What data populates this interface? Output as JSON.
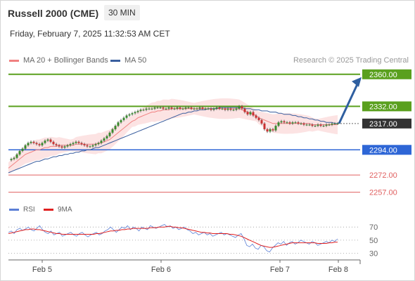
{
  "header": {
    "title": "Russell 2000 (CME)",
    "timeframe": "30 MIN",
    "datetime": "Friday, February 7, 2025 11:32:53 AM CET",
    "source": "Research © 2025 Trading Central"
  },
  "legend": {
    "ma20_label": "MA 20 + Bollinger Bands",
    "ma20_color": "#f08080",
    "ma50_label": "MA 50",
    "ma50_color": "#3a5f9f"
  },
  "rsi_legend": {
    "rsi_label": "RSI",
    "rsi_color": "#5b7fd6",
    "ma_label": "9MA",
    "ma_color": "#e02020"
  },
  "chart_data": {
    "type": "candlestick",
    "x_ticks": [
      "Feb 5",
      "Feb 6",
      "Feb 7",
      "Feb 8"
    ],
    "price_levels": [
      {
        "label": "2360.00",
        "value": 2360.0,
        "kind": "resistance",
        "color": "#5aa01e"
      },
      {
        "label": "2332.00",
        "value": 2332.0,
        "kind": "resistance",
        "color": "#5aa01e"
      },
      {
        "label": "2317.00",
        "value": 2317.0,
        "kind": "current",
        "color": "#333333"
      },
      {
        "label": "2294.00",
        "value": 2294.0,
        "kind": "pivot",
        "color": "#2e66d6"
      },
      {
        "label": "2272.00",
        "value": 2272.0,
        "kind": "support",
        "color": "#e06060"
      },
      {
        "label": "2257.00",
        "value": 2257.0,
        "kind": "support",
        "color": "#e06060"
      }
    ],
    "price_ylim": [
      2250,
      2366
    ],
    "rsi_ticks": [
      70,
      50,
      30
    ],
    "rsi_ylim": [
      22,
      82
    ],
    "forecast": {
      "from": 2317,
      "to": 2360,
      "direction": "up"
    },
    "price_series": [
      2285,
      2286,
      2287,
      2290,
      2293,
      2295,
      2298,
      2300,
      2301,
      2300,
      2299,
      2298,
      2300,
      2302,
      2303,
      2301,
      2299,
      2298,
      2297,
      2296,
      2297,
      2298,
      2299,
      2300,
      2301,
      2300,
      2299,
      2298,
      2297,
      2297,
      2298,
      2299,
      2300,
      2302,
      2304,
      2306,
      2309,
      2312,
      2315,
      2318,
      2320,
      2322,
      2324,
      2325,
      2326,
      2327,
      2328,
      2329,
      2329,
      2330,
      2330,
      2330,
      2331,
      2331,
      2331,
      2330,
      2330,
      2331,
      2330,
      2330,
      2331,
      2330,
      2330,
      2331,
      2331,
      2330,
      2330,
      2330,
      2331,
      2330,
      2330,
      2330,
      2329,
      2330,
      2331,
      2330,
      2330,
      2329,
      2330,
      2329,
      2329,
      2330,
      2332,
      2330,
      2327,
      2325,
      2327,
      2324,
      2322,
      2320,
      2317,
      2312,
      2310,
      2312,
      2311,
      2315,
      2318,
      2319,
      2318,
      2318,
      2317,
      2318,
      2318,
      2317,
      2317,
      2316,
      2316,
      2316,
      2315,
      2315,
      2316,
      2315,
      2315,
      2316,
      2316,
      2317,
      2317,
      2317
    ],
    "ma20": [
      2278,
      2280,
      2282,
      2284,
      2286,
      2288,
      2290,
      2291,
      2292,
      2293,
      2294,
      2294,
      2295,
      2296,
      2296,
      2297,
      2297,
      2297,
      2298,
      2298,
      2298,
      2298,
      2298,
      2298,
      2299,
      2299,
      2299,
      2299,
      2299,
      2299,
      2299,
      2299,
      2300,
      2300,
      2301,
      2302,
      2303,
      2305,
      2307,
      2309,
      2311,
      2313,
      2315,
      2317,
      2319,
      2320,
      2322,
      2323,
      2324,
      2325,
      2326,
      2327,
      2327,
      2328,
      2328,
      2329,
      2329,
      2329,
      2330,
      2330,
      2330,
      2330,
      2330,
      2330,
      2330,
      2330,
      2330,
      2330,
      2330,
      2330,
      2330,
      2330,
      2330,
      2330,
      2330,
      2330,
      2330,
      2330,
      2330,
      2330,
      2330,
      2330,
      2330,
      2329,
      2328,
      2327,
      2326,
      2325,
      2324,
      2322,
      2321,
      2320,
      2319,
      2318,
      2317,
      2317,
      2317,
      2317,
      2317,
      2317,
      2317,
      2317,
      2317,
      2317,
      2317,
      2317,
      2317,
      2317,
      2316,
      2316,
      2316,
      2316,
      2316,
      2316,
      2316,
      2316,
      2316,
      2316
    ],
    "ma50": [
      2274,
      2275,
      2276,
      2277,
      2278,
      2279,
      2280,
      2281,
      2282,
      2283,
      2284,
      2284,
      2285,
      2286,
      2286,
      2287,
      2288,
      2288,
      2289,
      2289,
      2290,
      2290,
      2291,
      2291,
      2292,
      2292,
      2293,
      2293,
      2294,
      2294,
      2295,
      2296,
      2296,
      2297,
      2298,
      2299,
      2300,
      2301,
      2302,
      2303,
      2304,
      2305,
      2306,
      2307,
      2308,
      2309,
      2310,
      2311,
      2312,
      2313,
      2314,
      2315,
      2316,
      2317,
      2318,
      2319,
      2320,
      2321,
      2322,
      2323,
      2324,
      2325,
      2326,
      2326,
      2327,
      2327,
      2328,
      2328,
      2329,
      2329,
      2329,
      2330,
      2330,
      2330,
      2330,
      2331,
      2331,
      2331,
      2331,
      2331,
      2331,
      2331,
      2331,
      2331,
      2330,
      2330,
      2330,
      2329,
      2329,
      2329,
      2328,
      2328,
      2328,
      2327,
      2327,
      2327,
      2326,
      2326,
      2325,
      2325,
      2325,
      2324,
      2324,
      2323,
      2323,
      2322,
      2322,
      2321,
      2321,
      2320,
      2320,
      2319,
      2319,
      2318,
      2318,
      2318,
      2317,
      2317
    ],
    "rsi": [
      62,
      64,
      60,
      66,
      68,
      65,
      67,
      70,
      66,
      64,
      68,
      72,
      66,
      62,
      60,
      64,
      58,
      60,
      62,
      56,
      58,
      60,
      62,
      58,
      56,
      60,
      62,
      58,
      55,
      58,
      60,
      62,
      58,
      60,
      64,
      66,
      70,
      66,
      62,
      66,
      70,
      68,
      72,
      66,
      70,
      68,
      64,
      70,
      68,
      66,
      72,
      70,
      68,
      70,
      72,
      74,
      70,
      72,
      68,
      70,
      66,
      68,
      70,
      66,
      64,
      60,
      62,
      58,
      60,
      62,
      58,
      60,
      56,
      58,
      60,
      62,
      58,
      60,
      58,
      56,
      54,
      58,
      60,
      52,
      42,
      40,
      44,
      38,
      36,
      42,
      40,
      34,
      32,
      38,
      42,
      46,
      44,
      48,
      42,
      46,
      48,
      44,
      46,
      50,
      48,
      46,
      44,
      48,
      46,
      42,
      44,
      46,
      48,
      46,
      50,
      48,
      52
    ],
    "rsi_ma": [
      60,
      61,
      62,
      63,
      64,
      65,
      66,
      66,
      67,
      67,
      66,
      66,
      65,
      64,
      63,
      62,
      61,
      60,
      60,
      59,
      59,
      59,
      59,
      59,
      59,
      59,
      59,
      59,
      59,
      59,
      59,
      60,
      60,
      61,
      62,
      63,
      64,
      64,
      65,
      65,
      66,
      66,
      67,
      67,
      68,
      68,
      68,
      68,
      68,
      68,
      69,
      69,
      69,
      70,
      70,
      70,
      71,
      71,
      70,
      70,
      69,
      69,
      68,
      67,
      66,
      65,
      64,
      63,
      62,
      62,
      61,
      61,
      60,
      60,
      60,
      60,
      60,
      60,
      59,
      59,
      58,
      57,
      56,
      54,
      52,
      50,
      48,
      46,
      44,
      42,
      41,
      40,
      39,
      39,
      40,
      41,
      42,
      43,
      44,
      45,
      46,
      46,
      46,
      46,
      46,
      46,
      46,
      46,
      46,
      45,
      45,
      45,
      45,
      46,
      46,
      47,
      47
    ]
  }
}
